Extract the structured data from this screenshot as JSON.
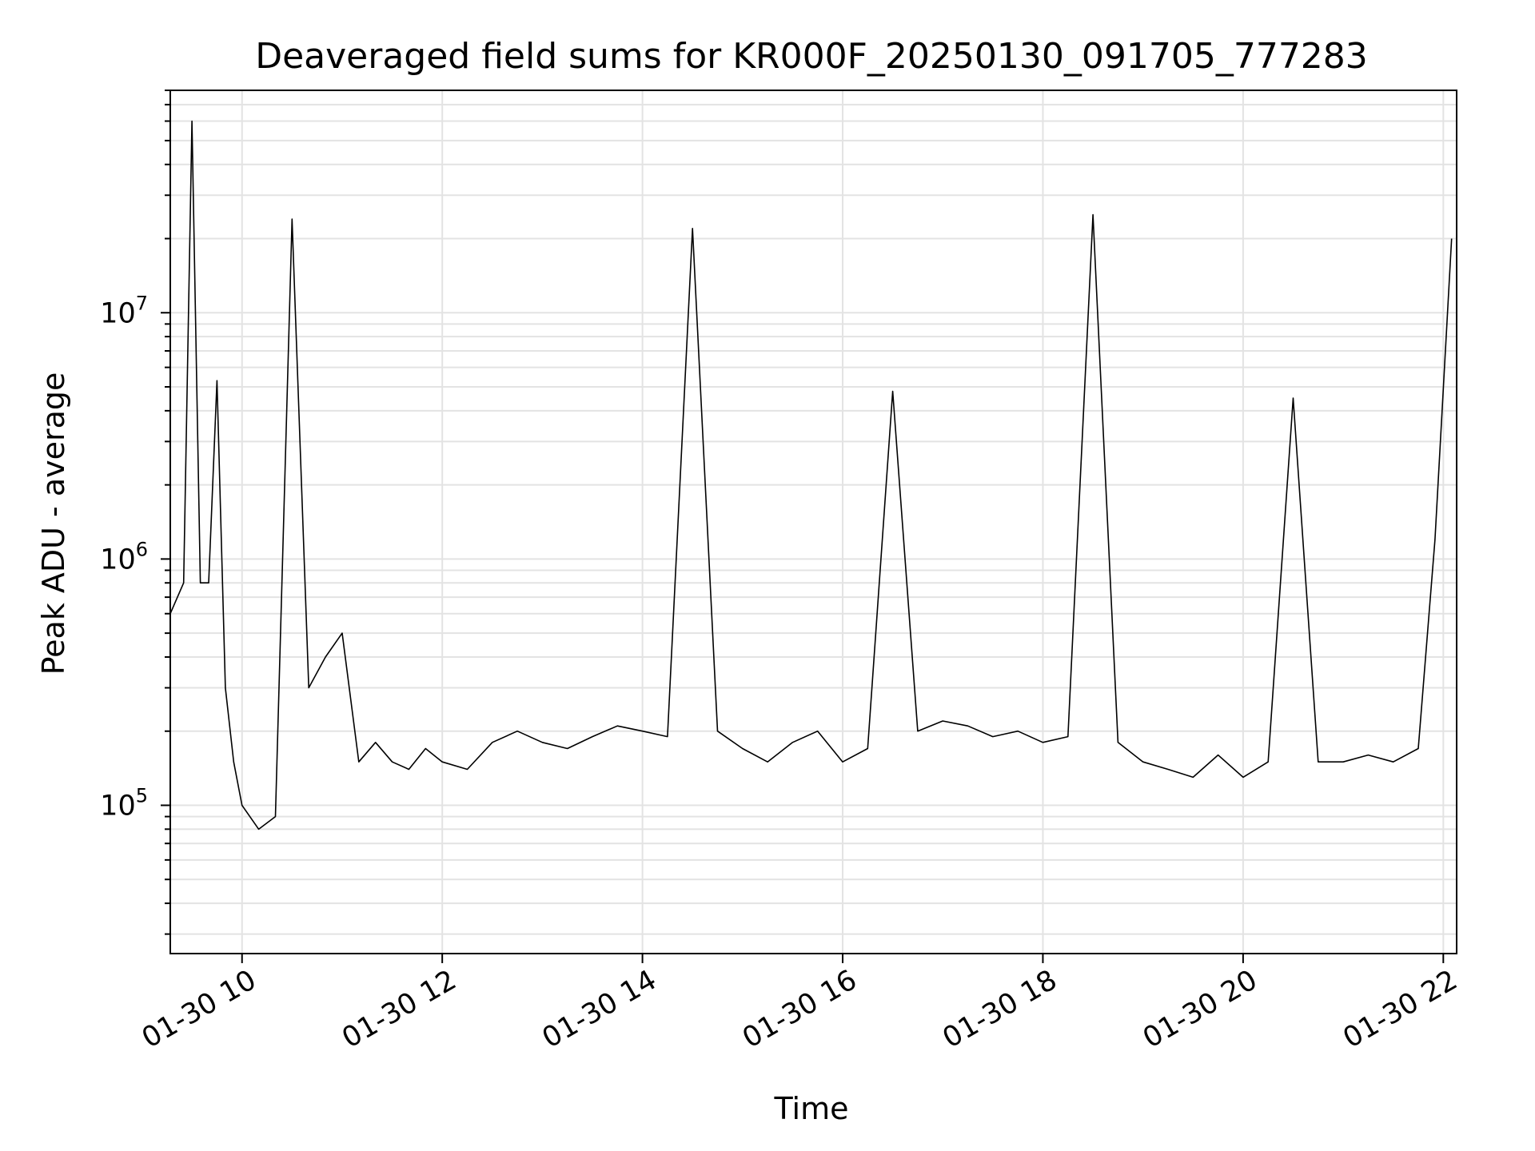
{
  "chart_data": {
    "type": "line",
    "title": "Deaveraged field sums for KR000F_20250130_091705_777283",
    "xlabel": "Time",
    "ylabel": "Peak ADU - average",
    "y_scale": "log",
    "xlim": [
      "01-30 09:17",
      "01-30 22:08"
    ],
    "ylim": [
      25000,
      80000000
    ],
    "x_ticks": [
      {
        "value": "01-30 10:00",
        "label": "01-30 10"
      },
      {
        "value": "01-30 12:00",
        "label": "01-30 12"
      },
      {
        "value": "01-30 14:00",
        "label": "01-30 14"
      },
      {
        "value": "01-30 16:00",
        "label": "01-30 16"
      },
      {
        "value": "01-30 18:00",
        "label": "01-30 18"
      },
      {
        "value": "01-30 20:00",
        "label": "01-30 20"
      },
      {
        "value": "01-30 22:00",
        "label": "01-30 22"
      }
    ],
    "y_ticks": [
      {
        "value": 100000,
        "base": "10",
        "exp": "5"
      },
      {
        "value": 1000000,
        "base": "10",
        "exp": "6"
      },
      {
        "value": 10000000,
        "base": "10",
        "exp": "7"
      }
    ],
    "grid": true,
    "line_color": "#000000",
    "series": [
      {
        "x": [
          "01-30 09:17",
          "01-30 09:25",
          "01-30 09:30",
          "01-30 09:35",
          "01-30 09:40",
          "01-30 09:45",
          "01-30 09:50",
          "01-30 09:55",
          "01-30 10:00",
          "01-30 10:10",
          "01-30 10:20",
          "01-30 10:30",
          "01-30 10:40",
          "01-30 10:50",
          "01-30 11:00",
          "01-30 11:10",
          "01-30 11:20",
          "01-30 11:30",
          "01-30 11:40",
          "01-30 11:50",
          "01-30 12:00",
          "01-30 12:15",
          "01-30 12:30",
          "01-30 12:45",
          "01-30 13:00",
          "01-30 13:15",
          "01-30 13:30",
          "01-30 13:45",
          "01-30 14:00",
          "01-30 14:15",
          "01-30 14:30",
          "01-30 14:45",
          "01-30 15:00",
          "01-30 15:15",
          "01-30 15:30",
          "01-30 15:45",
          "01-30 16:00",
          "01-30 16:15",
          "01-30 16:30",
          "01-30 16:45",
          "01-30 17:00",
          "01-30 17:15",
          "01-30 17:30",
          "01-30 17:45",
          "01-30 18:00",
          "01-30 18:15",
          "01-30 18:30",
          "01-30 18:45",
          "01-30 19:00",
          "01-30 19:15",
          "01-30 19:30",
          "01-30 19:45",
          "01-30 20:00",
          "01-30 20:15",
          "01-30 20:30",
          "01-30 20:45",
          "01-30 21:00",
          "01-30 21:15",
          "01-30 21:30",
          "01-30 21:45",
          "01-30 21:55",
          "01-30 22:05"
        ],
        "y": [
          600000,
          800000,
          60000000,
          800000,
          800000,
          5300000,
          300000,
          150000,
          100000,
          80000,
          90000,
          24000000,
          300000,
          400000,
          500000,
          150000,
          180000,
          150000,
          140000,
          170000,
          150000,
          140000,
          180000,
          200000,
          180000,
          170000,
          190000,
          210000,
          200000,
          190000,
          22000000,
          200000,
          170000,
          150000,
          180000,
          200000,
          150000,
          170000,
          4800000,
          200000,
          220000,
          210000,
          190000,
          200000,
          180000,
          190000,
          25000000,
          180000,
          150000,
          140000,
          130000,
          160000,
          130000,
          150000,
          4500000,
          150000,
          150000,
          160000,
          150000,
          170000,
          1200000,
          20000000
        ]
      }
    ]
  }
}
